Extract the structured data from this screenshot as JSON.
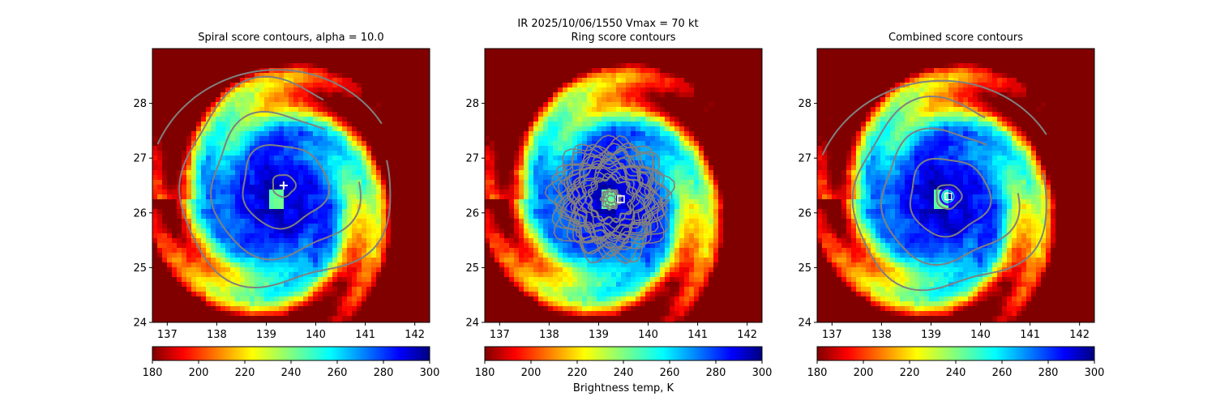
{
  "suptitle": "IR  2025/10/06/1550    Vmax = 70 kt",
  "colorbar": {
    "label": "Brightness temp, K",
    "ticks": [
      "180",
      "200",
      "220",
      "240",
      "260",
      "280",
      "300"
    ],
    "range": [
      180,
      300
    ],
    "colormap": "jet"
  },
  "colors": {
    "contour": "#808080",
    "best_center_marker": "#ffffff",
    "circle_outer": "#2d00ff",
    "circle_inner": "#00d9ff"
  },
  "chart_data": [
    {
      "type": "heatmap",
      "title": "Spiral score contours, alpha = 10.0",
      "xlim": [
        136.7,
        142.3
      ],
      "ylim": [
        24.0,
        29.0
      ],
      "xticks": [
        "137",
        "138",
        "139",
        "140",
        "141",
        "142"
      ],
      "yticks": [
        "24",
        "25",
        "26",
        "27",
        "28"
      ],
      "storm_center": [
        139.2,
        26.25
      ],
      "overlay": "spiral_contours",
      "marker": {
        "type": "plus",
        "x": 139.35,
        "y": 26.5
      }
    },
    {
      "type": "heatmap",
      "title": "Ring score contours",
      "xlim": [
        136.7,
        142.3
      ],
      "ylim": [
        24.0,
        29.0
      ],
      "xticks": [
        "137",
        "138",
        "139",
        "140",
        "141",
        "142"
      ],
      "yticks": [
        "24",
        "25",
        "26",
        "27",
        "28"
      ],
      "storm_center": [
        139.2,
        26.25
      ],
      "overlay": "ring_contours",
      "marker": {
        "type": "square",
        "x": 139.45,
        "y": 26.25
      }
    },
    {
      "type": "heatmap",
      "title": "Combined score contours",
      "xlim": [
        136.7,
        142.3
      ],
      "ylim": [
        24.0,
        29.0
      ],
      "xticks": [
        "137",
        "138",
        "139",
        "140",
        "141",
        "142"
      ],
      "yticks": [
        "24",
        "25",
        "26",
        "27",
        "28"
      ],
      "storm_center": [
        139.2,
        26.25
      ],
      "overlay": "combined_contours",
      "marker": {
        "type": "square_circle",
        "x": 139.35,
        "y": 26.3
      }
    }
  ]
}
